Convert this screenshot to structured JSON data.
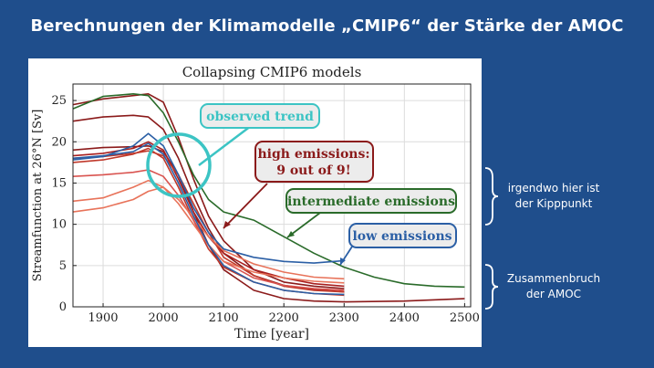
{
  "slide": {
    "title": "Berechnungen der Klimamodelle „CMIP6“ der Stärke der AMOC",
    "note_tipping_point": [
      "irgendwo hier ist",
      "der Kipppunkt"
    ],
    "note_collapse": [
      "Zusammenbruch",
      "der AMOC"
    ]
  },
  "chart_data": {
    "type": "line",
    "title": "Collapsing CMIP6 models",
    "xlabel": "Time [year]",
    "ylabel": "Streamfunction at 26°N [Sv]",
    "xlim": [
      1850,
      2510
    ],
    "ylim": [
      0,
      27
    ],
    "xticks": [
      1900,
      2000,
      2100,
      2200,
      2300,
      2400,
      2500
    ],
    "yticks": [
      0,
      5,
      10,
      15,
      20,
      25
    ],
    "grid": true,
    "annotations": {
      "observed": "observed trend",
      "high": [
        "high emissions:",
        "9 out of 9!"
      ],
      "intermediate": "intermediate emissions",
      "low": "low emissions"
    },
    "colors": {
      "observed": "#3cc4c4",
      "high": "#8b1a1a",
      "intermediate": "#2a6b2a",
      "low": "#2b5fa5"
    },
    "series": [
      {
        "color": "#8b1a1a",
        "x": [
          1850,
          1900,
          1950,
          1975,
          2000,
          2025,
          2050,
          2075,
          2100,
          2150,
          2200,
          2250,
          2300
        ],
        "y": [
          24.5,
          25.2,
          25.6,
          25.8,
          24.8,
          20.5,
          15.5,
          11.0,
          8.0,
          4.5,
          3.0,
          2.5,
          2.2
        ]
      },
      {
        "color": "#8b1a1a",
        "x": [
          1850,
          1900,
          1950,
          1975,
          2000,
          2025,
          2050,
          2075,
          2100,
          2150,
          2200,
          2250,
          2300
        ],
        "y": [
          22.5,
          23.0,
          23.2,
          23.0,
          21.5,
          18.0,
          13.5,
          9.5,
          6.5,
          3.8,
          2.6,
          2.1,
          1.8
        ]
      },
      {
        "color": "#8b1a1a",
        "x": [
          1850,
          1900,
          1950,
          1975,
          2000,
          2025,
          2050,
          2075,
          2100,
          2150,
          2200,
          2250,
          2300,
          2400,
          2500
        ],
        "y": [
          19.0,
          19.3,
          19.4,
          19.5,
          18.8,
          16.0,
          11.5,
          7.5,
          4.5,
          2.0,
          1.0,
          0.7,
          0.6,
          0.7,
          1.0
        ]
      },
      {
        "color": "#a81f1f",
        "x": [
          1850,
          1900,
          1950,
          1975,
          2000,
          2025,
          2050,
          2075,
          2100,
          2150,
          2200,
          2250,
          2300
        ],
        "y": [
          18.3,
          18.6,
          19.2,
          20.0,
          19.0,
          15.5,
          11.5,
          8.5,
          6.5,
          4.5,
          3.5,
          2.8,
          2.5
        ]
      },
      {
        "color": "#c0392b",
        "x": [
          1850,
          1900,
          1950,
          1975,
          2000,
          2025,
          2050,
          2075,
          2100,
          2150,
          2200,
          2250,
          2300
        ],
        "y": [
          18.0,
          18.2,
          18.6,
          18.9,
          18.3,
          16.0,
          12.5,
          9.0,
          6.0,
          3.8,
          2.5,
          2.0,
          1.8
        ]
      },
      {
        "color": "#c0392b",
        "x": [
          1850,
          1900,
          1950,
          1975,
          2000,
          2025,
          2050,
          2075,
          2100,
          2150,
          2200,
          2250,
          2300
        ],
        "y": [
          17.5,
          17.8,
          18.5,
          19.2,
          18.0,
          14.5,
          10.5,
          7.0,
          4.8,
          3.0,
          2.0,
          1.6,
          1.4
        ]
      },
      {
        "color": "#d9534f",
        "x": [
          1850,
          1900,
          1950,
          1975,
          2000,
          2025,
          2050,
          2075,
          2100,
          2150,
          2200,
          2250,
          2300
        ],
        "y": [
          15.8,
          16.0,
          16.3,
          16.6,
          15.8,
          13.5,
          10.5,
          7.5,
          5.5,
          3.5,
          2.6,
          2.2,
          2.0
        ]
      },
      {
        "color": "#e8735a",
        "x": [
          1850,
          1900,
          1950,
          1975,
          2000,
          2025,
          2050,
          2075,
          2100,
          2150,
          2200,
          2250,
          2300
        ],
        "y": [
          12.8,
          13.2,
          14.5,
          15.3,
          14.5,
          12.5,
          10.0,
          7.5,
          5.5,
          4.2,
          3.5,
          3.1,
          2.9
        ]
      },
      {
        "color": "#e8735a",
        "x": [
          1850,
          1900,
          1950,
          1975,
          2000,
          2025,
          2050,
          2075,
          2100,
          2150,
          2200,
          2250,
          2300
        ],
        "y": [
          11.5,
          12.0,
          13.0,
          14.0,
          14.5,
          13.0,
          10.8,
          8.5,
          6.8,
          5.2,
          4.2,
          3.6,
          3.4
        ]
      },
      {
        "color": "#2a6b2a",
        "x": [
          1850,
          1900,
          1950,
          1975,
          2000,
          2025,
          2050,
          2075,
          2100,
          2150,
          2200,
          2250,
          2300,
          2350,
          2400,
          2450,
          2500
        ],
        "y": [
          24.0,
          25.5,
          25.8,
          25.6,
          23.5,
          20.0,
          16.0,
          13.0,
          11.5,
          10.5,
          8.5,
          6.5,
          4.8,
          3.6,
          2.8,
          2.5,
          2.4
        ]
      },
      {
        "color": "#2b5fa5",
        "x": [
          1850,
          1900,
          1950,
          1975,
          2000,
          2025,
          2050,
          2075,
          2100,
          2150,
          2200,
          2250,
          2300
        ],
        "y": [
          17.8,
          18.2,
          19.5,
          21.0,
          19.5,
          16.0,
          12.0,
          9.0,
          7.0,
          6.0,
          5.5,
          5.3,
          5.6
        ]
      },
      {
        "color": "#2b5fa5",
        "x": [
          1850,
          1900,
          1950,
          1975,
          2000,
          2025,
          2050,
          2075,
          2100,
          2150,
          2200,
          2250,
          2300
        ],
        "y": [
          18.0,
          18.3,
          18.8,
          19.8,
          18.5,
          15.0,
          11.0,
          7.5,
          5.0,
          3.0,
          2.0,
          1.6,
          1.5
        ]
      }
    ]
  }
}
